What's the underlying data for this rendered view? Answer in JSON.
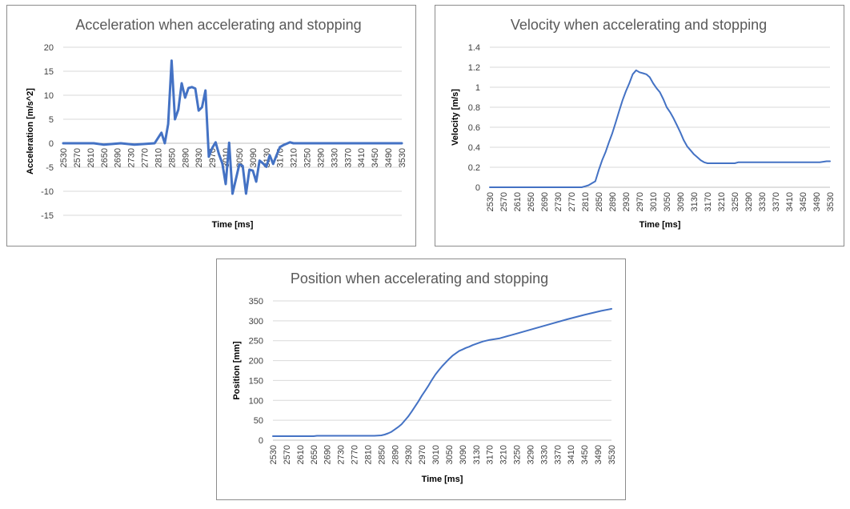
{
  "chart_data": [
    {
      "id": "accel",
      "type": "line",
      "title": "Acceleration when accelerating and stopping",
      "xlabel": "Time [ms]",
      "ylabel": "Acceleration [m/s^2]",
      "ylim": [
        -15,
        20
      ],
      "yticks": [
        20,
        15,
        10,
        5,
        0,
        -5,
        -10,
        -15
      ],
      "xlim": [
        2530,
        3530
      ],
      "xticks": [
        2530,
        2570,
        2610,
        2650,
        2690,
        2730,
        2770,
        2810,
        2850,
        2890,
        2930,
        2970,
        3010,
        3050,
        3090,
        3130,
        3170,
        3210,
        3250,
        3290,
        3330,
        3370,
        3410,
        3450,
        3490,
        3530
      ],
      "grid": true,
      "line_color": "#4472c4",
      "series": [
        {
          "x": [
            2530,
            2620,
            2650,
            2700,
            2740,
            2800,
            2820,
            2830,
            2840,
            2850,
            2860,
            2870,
            2880,
            2890,
            2900,
            2910,
            2920,
            2930,
            2940,
            2950,
            2960,
            2970,
            2980,
            2990,
            3000,
            3010,
            3020,
            3030,
            3040,
            3050,
            3060,
            3070,
            3080,
            3090,
            3100,
            3110,
            3120,
            3130,
            3140,
            3150,
            3160,
            3170,
            3180,
            3200,
            3210,
            3300,
            3400,
            3500,
            3530
          ],
          "y": [
            0,
            0,
            -0.3,
            0,
            -0.3,
            0,
            2.2,
            0,
            4,
            17.2,
            5,
            7,
            12.5,
            9.5,
            11.5,
            11.7,
            11.4,
            6.8,
            7.5,
            11,
            -2.8,
            -1,
            0.2,
            -2.3,
            -4.2,
            -8.5,
            0.1,
            -10.5,
            -7.5,
            -4.4,
            -4.7,
            -10.5,
            -5.5,
            -5.7,
            -8,
            -3.6,
            -4.2,
            -4.9,
            -2.5,
            -4.3,
            -2.5,
            -0.8,
            -0.4,
            0.2,
            0,
            0,
            0,
            0,
            0
          ]
        }
      ]
    },
    {
      "id": "vel",
      "type": "line",
      "title": "Velocity when accelerating and stopping",
      "xlabel": "Time [ms]",
      "ylabel": "Velocity [m/s]",
      "ylim": [
        0,
        1.4
      ],
      "yticks": [
        "1.4",
        "1.2",
        "1",
        "0.8",
        "0.6",
        "0.4",
        "0.2",
        "0"
      ],
      "xlim": [
        2530,
        3530
      ],
      "xticks": [
        2530,
        2570,
        2610,
        2650,
        2690,
        2730,
        2770,
        2810,
        2850,
        2890,
        2930,
        2970,
        3010,
        3050,
        3090,
        3130,
        3170,
        3210,
        3250,
        3290,
        3330,
        3370,
        3410,
        3450,
        3490,
        3530
      ],
      "grid": true,
      "line_color": "#4472c4",
      "series": [
        {
          "x": [
            2530,
            2800,
            2810,
            2820,
            2830,
            2840,
            2850,
            2860,
            2870,
            2880,
            2890,
            2900,
            2910,
            2920,
            2930,
            2940,
            2950,
            2960,
            2970,
            2980,
            2990,
            3000,
            3010,
            3020,
            3030,
            3040,
            3050,
            3060,
            3070,
            3080,
            3090,
            3100,
            3110,
            3120,
            3130,
            3140,
            3150,
            3160,
            3170,
            3180,
            3250,
            3260,
            3500,
            3520,
            3530
          ],
          "y": [
            0,
            0,
            0.01,
            0.02,
            0.04,
            0.06,
            0.17,
            0.27,
            0.35,
            0.45,
            0.54,
            0.65,
            0.76,
            0.87,
            0.96,
            1.04,
            1.13,
            1.17,
            1.15,
            1.14,
            1.13,
            1.1,
            1.04,
            0.99,
            0.95,
            0.88,
            0.8,
            0.75,
            0.69,
            0.62,
            0.55,
            0.47,
            0.41,
            0.37,
            0.33,
            0.3,
            0.27,
            0.25,
            0.24,
            0.24,
            0.24,
            0.25,
            0.25,
            0.26,
            0.26
          ]
        }
      ]
    },
    {
      "id": "pos",
      "type": "line",
      "title": "Position when accelerating and stopping",
      "xlabel": "Time [ms]",
      "ylabel": "Position [mm]",
      "ylim": [
        0,
        350
      ],
      "yticks": [
        "350",
        "300",
        "250",
        "200",
        "150",
        "100",
        "50",
        "0"
      ],
      "xlim": [
        2530,
        3530
      ],
      "xticks": [
        2530,
        2570,
        2610,
        2650,
        2690,
        2730,
        2770,
        2810,
        2850,
        2890,
        2930,
        2970,
        3010,
        3050,
        3090,
        3130,
        3170,
        3210,
        3250,
        3290,
        3330,
        3370,
        3410,
        3450,
        3490,
        3530
      ],
      "grid": true,
      "line_color": "#4472c4",
      "series": [
        {
          "x": [
            2530,
            2650,
            2660,
            2830,
            2850,
            2860,
            2870,
            2880,
            2890,
            2900,
            2910,
            2920,
            2930,
            2940,
            2950,
            2960,
            2970,
            2980,
            2990,
            3000,
            3010,
            3020,
            3030,
            3040,
            3050,
            3060,
            3070,
            3080,
            3090,
            3100,
            3110,
            3120,
            3130,
            3140,
            3150,
            3160,
            3170,
            3200,
            3250,
            3300,
            3350,
            3400,
            3450,
            3500,
            3530
          ],
          "y": [
            10,
            10,
            11,
            11,
            12,
            14,
            17,
            21,
            27,
            33,
            40,
            50,
            60,
            72,
            85,
            98,
            112,
            125,
            138,
            152,
            165,
            176,
            186,
            195,
            204,
            212,
            218,
            224,
            228,
            232,
            235,
            239,
            242,
            245,
            248,
            250,
            252,
            256,
            268,
            280,
            292,
            304,
            315,
            325,
            330
          ]
        }
      ]
    }
  ]
}
